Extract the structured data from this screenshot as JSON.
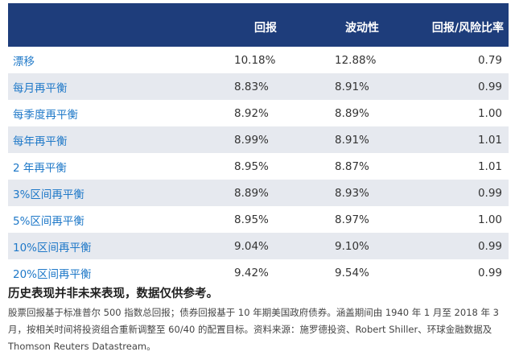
{
  "table": {
    "headers": {
      "label": "",
      "return": "回报",
      "volatility": "波动性",
      "ratio": "回报/风险比率"
    },
    "rows": [
      {
        "label": "漂移",
        "return": "10.18%",
        "volatility": "12.88%",
        "ratio": "0.79"
      },
      {
        "label": "每月再平衡",
        "return": "8.83%",
        "volatility": "8.91%",
        "ratio": "0.99"
      },
      {
        "label": "每季度再平衡",
        "return": "8.92%",
        "volatility": "8.89%",
        "ratio": "1.00"
      },
      {
        "label": "每年再平衡",
        "return": "8.99%",
        "volatility": "8.91%",
        "ratio": "1.01"
      },
      {
        "label": "2 年再平衡",
        "return": "8.95%",
        "volatility": "8.87%",
        "ratio": "1.01"
      },
      {
        "label": "3%区间再平衡",
        "return": "8.89%",
        "volatility": "8.93%",
        "ratio": "0.99"
      },
      {
        "label": "5%区间再平衡",
        "return": "8.95%",
        "volatility": "8.97%",
        "ratio": "1.00"
      },
      {
        "label": "10%区间再平衡",
        "return": "9.04%",
        "volatility": "9.10%",
        "ratio": "0.99"
      },
      {
        "label": "20%区间再平衡",
        "return": "9.42%",
        "volatility": "9.54%",
        "ratio": "0.99"
      }
    ]
  },
  "disclaimer": "历史表现并非未来表现，数据仅供参考。",
  "footnote": "股票回报基于标准普尔 500 指数总回报；债券回报基于 10 年期美国政府债券。涵盖期间由 1940 年 1 月至 2018 年 3 月，按相关时间将投资组合重新调整至 60/40 的配置目标。资料来源：施罗德投资、Robert Shiller、环球金融数据及 Thomson Reuters Datastream。",
  "colors": {
    "header_bg": "#1e3d7b",
    "label_text": "#1e78c8",
    "stripe_bg": "#e6e9ef"
  }
}
